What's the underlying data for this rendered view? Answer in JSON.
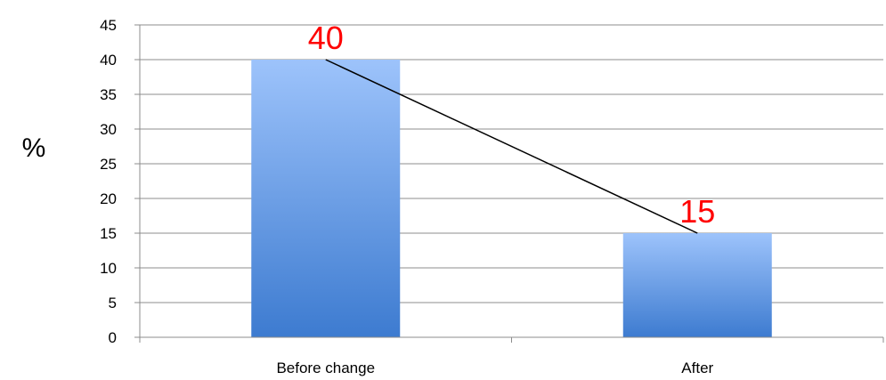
{
  "chart_data": {
    "type": "bar",
    "title": "",
    "xlabel": "",
    "ylabel": "%",
    "categories": [
      "Before change",
      "After"
    ],
    "values": [
      40,
      15
    ],
    "data_labels": [
      "40",
      "15"
    ],
    "ylim": [
      0,
      45
    ],
    "yticks": [
      0,
      5,
      10,
      15,
      20,
      25,
      30,
      35,
      40,
      45
    ],
    "grid": true,
    "legend": "none",
    "connector_line": true,
    "colors": {
      "bar_top": "#9dc3fb",
      "bar_bottom": "#3d7bd0",
      "data_label": "#ff0000",
      "grid": "#8c8c8c",
      "axis": "#8c8c8c",
      "connector": "#000000"
    }
  }
}
